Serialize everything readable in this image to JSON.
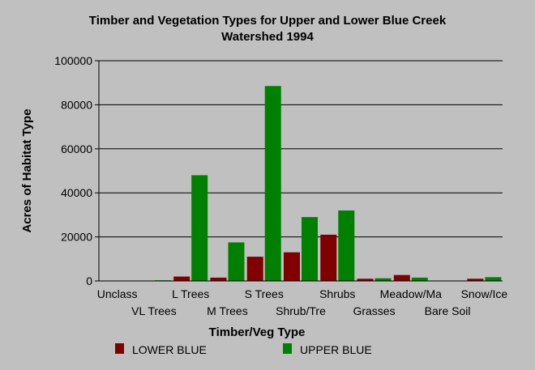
{
  "chart_data": {
    "type": "bar",
    "title": "Timber and Vegetation Types for Upper and Lower Blue Creek",
    "subtitle": "Watershed 1994",
    "xlabel": "Timber/Veg Type",
    "ylabel": "Acres of Habitat Type",
    "ylim": [
      0,
      100000
    ],
    "yticks": [
      "0",
      "20000",
      "40000",
      "60000",
      "80000",
      "100000"
    ],
    "grid": true,
    "legend_position": "bottom",
    "categories": [
      "Unclass",
      "VL Trees",
      "L Trees",
      "M Trees",
      "S Trees",
      "Shrub/Tre",
      "Shrubs",
      "Grasses",
      "Meadow/Ma",
      "Bare Soil",
      "Snow/Ice"
    ],
    "series": [
      {
        "name": "LOWER BLUE",
        "color": "#800000",
        "values": [
          0,
          0,
          2000,
          1500,
          11000,
          13000,
          21000,
          1000,
          2700,
          0,
          1000
        ]
      },
      {
        "name": "UPPER BLUE",
        "color": "#008000",
        "values": [
          0,
          300,
          48000,
          17500,
          88500,
          29000,
          32000,
          1200,
          1500,
          0,
          1700
        ]
      }
    ]
  }
}
